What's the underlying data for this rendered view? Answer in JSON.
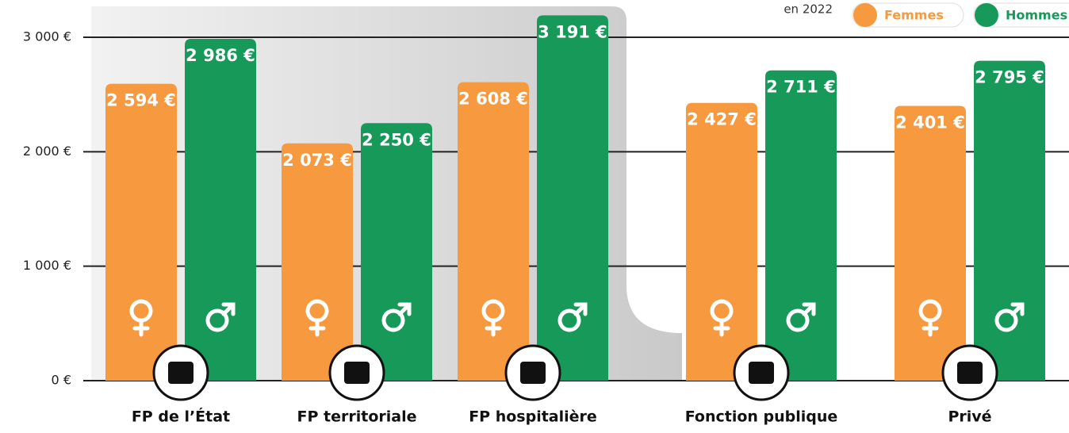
{
  "chart_data": {
    "type": "bar",
    "subtitle": "en 2022",
    "categories": [
      "FP de l’État",
      "FP territoriale",
      "FP hospitalière",
      "Fonction publique",
      "Privé"
    ],
    "series": [
      {
        "name": "Femmes",
        "color": "#f7993f",
        "values": [
          2594,
          2073,
          2608,
          2427,
          2401
        ],
        "value_labels": [
          "2 594 €",
          "2 073 €",
          "2 608 €",
          "2 427 €",
          "2 401 €"
        ]
      },
      {
        "name": "Hommes",
        "color": "#17995a",
        "values": [
          2986,
          2250,
          3191,
          2711,
          2795
        ],
        "value_labels": [
          "2 986 €",
          "2 250 €",
          "3 191 €",
          "2 711 €",
          "2 795 €"
        ]
      }
    ],
    "ylim": [
      0,
      3000
    ],
    "yticks": [
      {
        "value": 0,
        "label": "0 €"
      },
      {
        "value": 1000,
        "label": "1 000 €"
      },
      {
        "value": 2000,
        "label": "2 000 €"
      },
      {
        "value": 3000,
        "label": "3 000 €"
      }
    ],
    "grid": true
  }
}
